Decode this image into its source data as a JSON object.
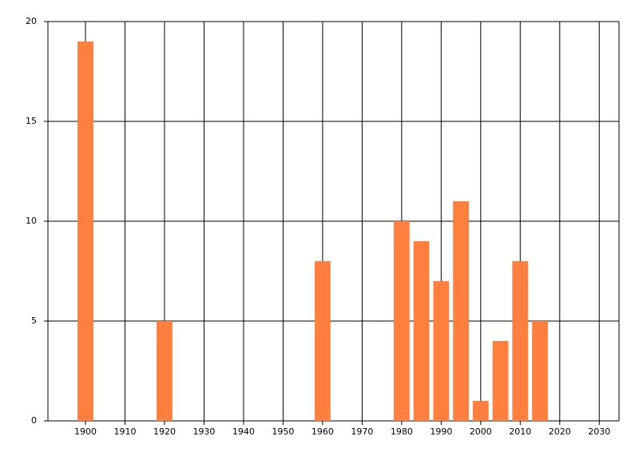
{
  "chart_data": {
    "type": "bar",
    "x": [
      1900,
      1920,
      1960,
      1980,
      1985,
      1990,
      1995,
      2000,
      2005,
      2010,
      2015
    ],
    "values": [
      19,
      5,
      8,
      10,
      9,
      7,
      11,
      1,
      4,
      8,
      5
    ],
    "color": "#ff7f3f",
    "bar_width": 4,
    "xlim": [
      1890.5,
      2035
    ],
    "xticks": [
      1900,
      1910,
      1920,
      1930,
      1940,
      1950,
      1960,
      1970,
      1980,
      1990,
      2000,
      2010,
      2020,
      2030
    ],
    "ylim": [
      0,
      20
    ],
    "yticks": [
      0,
      5,
      10,
      15,
      20
    ],
    "grid": true
  }
}
